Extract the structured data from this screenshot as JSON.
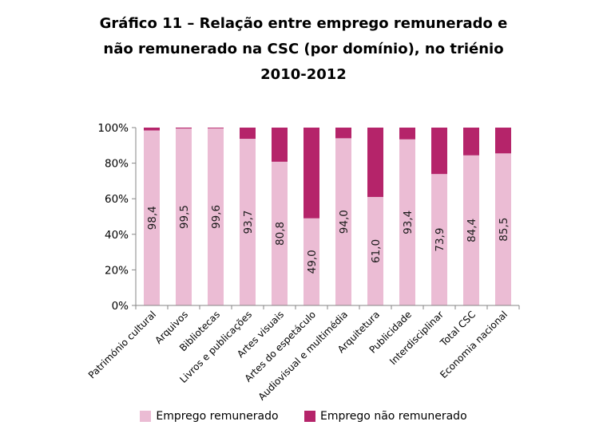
{
  "chart_data": {
    "type": "bar",
    "stacked": true,
    "title_lines": [
      "Gráfico 11 – Relação entre emprego remunerado e",
      "não remunerado na CSC (por domínio), no triénio",
      "2010-2012"
    ],
    "categories": [
      "Património cultural",
      "Arquivos",
      "Bibliotecas",
      "Livros e publicações",
      "Artes visuais",
      "Artes do espetáculo",
      "Audiovisual e multimédia",
      "Arquitetura",
      "Publicidade",
      "Interdisciplinar",
      "Total CSC",
      "Economia nacional"
    ],
    "series": [
      {
        "name": "Emprego remunerado",
        "color": "#ebbcd4",
        "values": [
          98.4,
          99.5,
          99.6,
          93.7,
          80.8,
          49.0,
          94.0,
          61.0,
          93.4,
          73.9,
          84.4,
          85.5
        ]
      },
      {
        "name": "Emprego não remunerado",
        "color": "#b5246a",
        "values": [
          1.6,
          0.5,
          0.4,
          6.3,
          19.2,
          51.0,
          6.0,
          39.0,
          6.6,
          26.1,
          15.6,
          14.5
        ]
      }
    ],
    "data_labels": [
      "98,4",
      "99,5",
      "99,6",
      "93,7",
      "80,8",
      "49,0",
      "94,0",
      "61,0",
      "93,4",
      "73,9",
      "84,4",
      "85,5"
    ],
    "yticks": [
      "0%",
      "20%",
      "40%",
      "60%",
      "80%",
      "100%"
    ],
    "ylim": [
      0,
      100
    ],
    "legend_position": "bottom",
    "grid": false
  }
}
